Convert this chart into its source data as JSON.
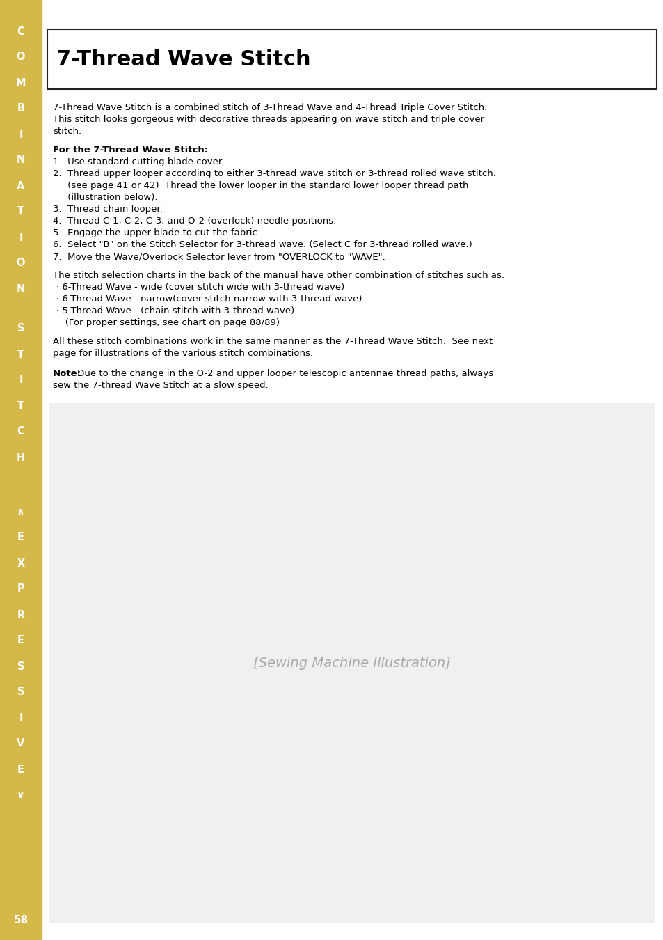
{
  "page_bg": "#ffffff",
  "sidebar_color": "#d4b84a",
  "page_number": "58",
  "title": "7-Thread Wave Stitch",
  "title_fontsize": 22,
  "body_fontsize": 9.5,
  "text_color": "#000000",
  "intro_lines": [
    "7-Thread Wave Stitch is a combined stitch of 3-Thread Wave and 4-Thread Triple Cover Stitch.",
    "This stitch looks gorgeous with decorative threads appearing on wave stitch and triple cover",
    "stitch."
  ],
  "bold_heading": "For the 7-Thread Wave Stitch:",
  "steps_lines": [
    "1.  Use standard cutting blade cover.",
    "2.  Thread upper looper according to either 3-thread wave stitch or 3-thread rolled wave stitch.",
    "     (see page 41 or 42)  Thread the lower looper in the standard lower looper thread path",
    "     (illustration below).",
    "3.  Thread chain looper.",
    "4.  Thread C-1, C-2, C-3, and O-2 (overlock) needle positions.",
    "5.  Engage the upper blade to cut the fabric.",
    "6.  Select \"B\" on the Stitch Selector for 3-thread wave. (Select C for 3-thread rolled wave.)",
    "7.  Move the Wave/Overlock Selector lever from \"OVERLOCK to \"WAVE\"."
  ],
  "para2_line": "The stitch selection charts in the back of the manual have other combination of stitches such as:",
  "bullets": [
    "· 6-Thread Wave - wide (cover stitch wide with 3-thread wave)",
    "· 6-Thread Wave - narrow(cover stitch narrow with 3-thread wave)",
    "· 5-Thread Wave - (chain stitch with 3-thread wave)",
    "   (For proper settings, see chart on page 88/89)"
  ],
  "para3_lines": [
    "All these stitch combinations work in the same manner as the 7-Thread Wave Stitch.  See next",
    "page for illustrations of the various stitch combinations."
  ],
  "note_bold": "Note:",
  "note_line1": " Due to the change in the O-2 and upper looper telescopic antennae thread paths, always",
  "note_line2": "sew the 7-thread Wave Stitch at a slow speed.",
  "sidebar_chars_top": [
    "C",
    "O",
    "M",
    "B",
    "I",
    "N",
    "A",
    "T",
    "I",
    "O",
    "N",
    "S",
    "T",
    "I",
    "T",
    "C",
    "H"
  ],
  "sidebar_chars_bot": [
    "∧",
    "E",
    "X",
    "P",
    "R",
    "E",
    "S",
    "S",
    "I",
    "V",
    "E",
    "∨"
  ]
}
